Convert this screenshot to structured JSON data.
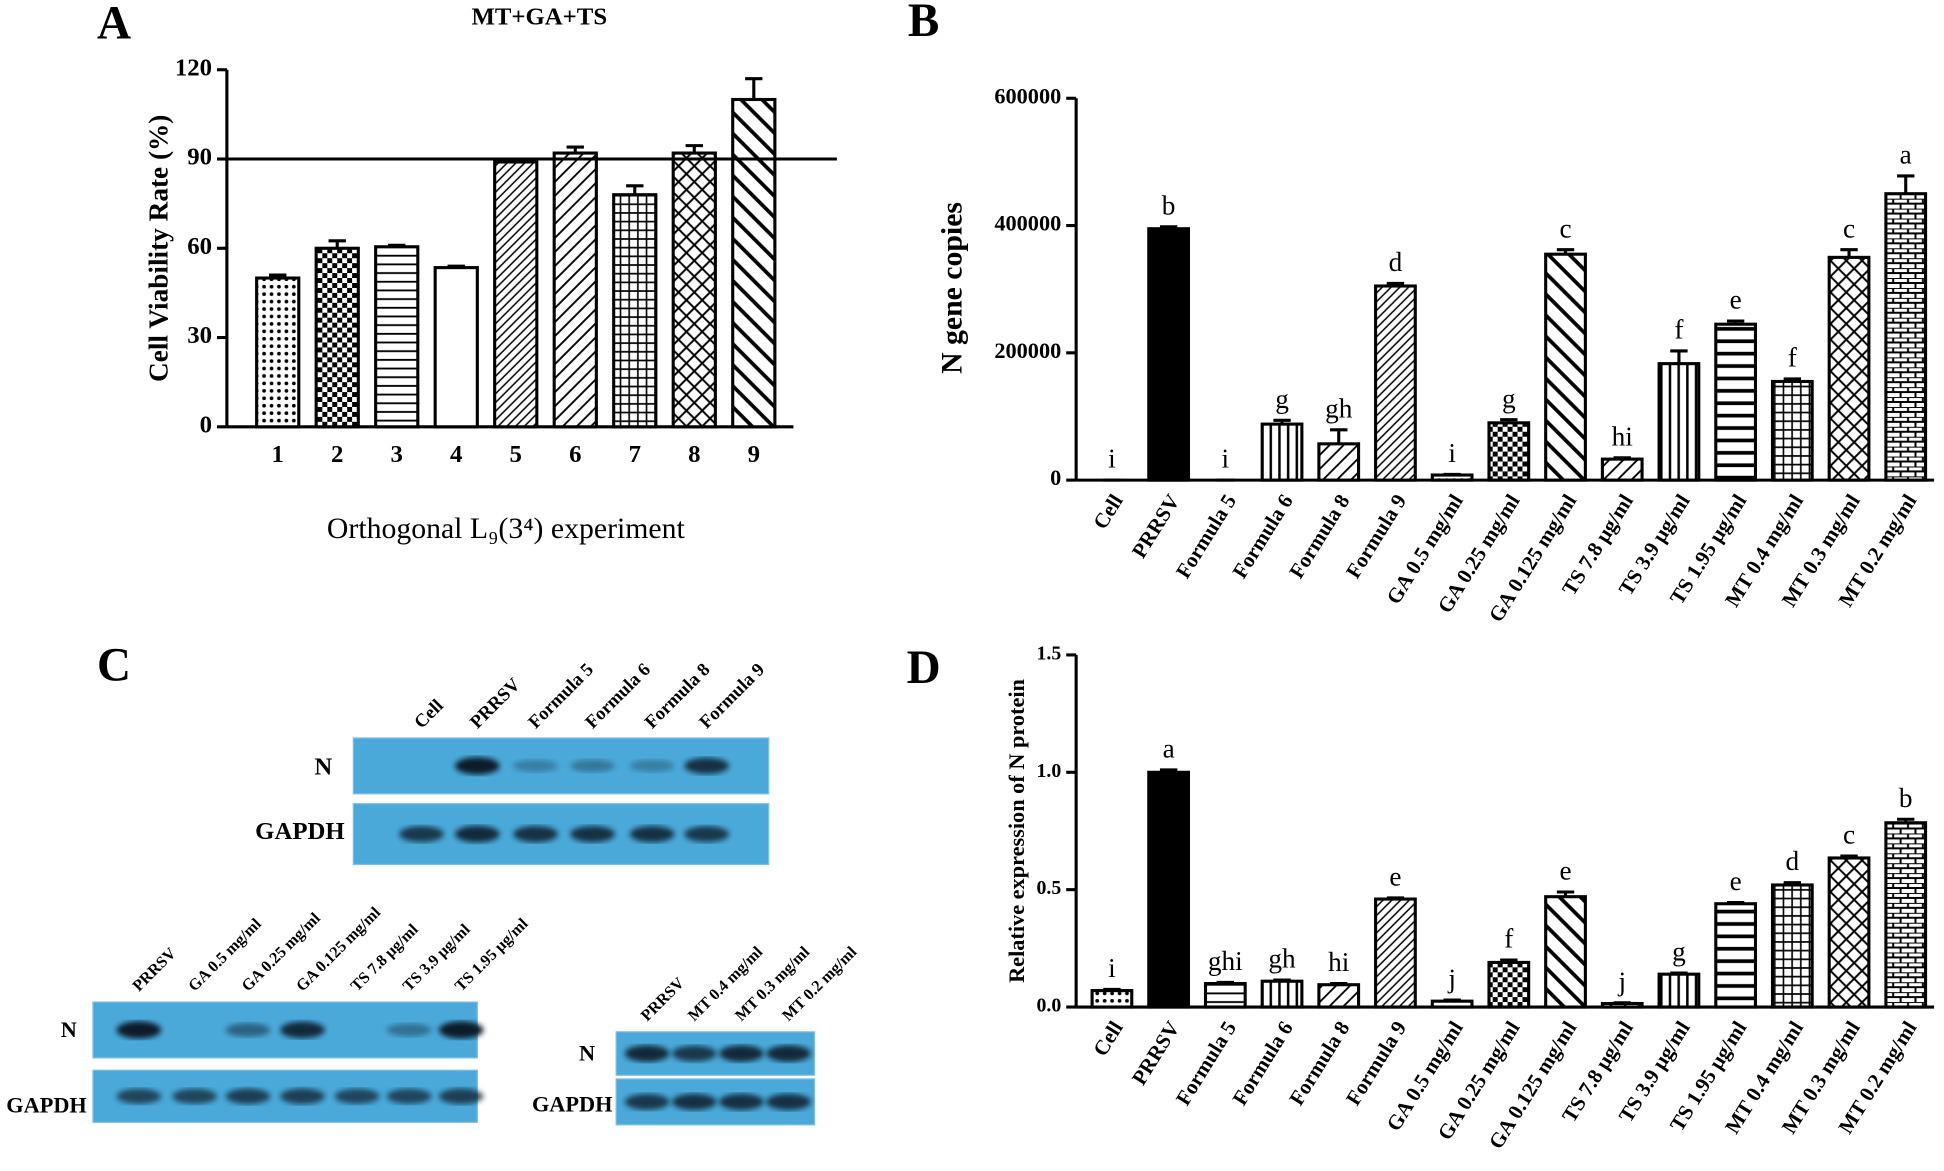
{
  "chart_data": [
    {
      "type": "bar",
      "panel": "A",
      "title": "MT+GA+TS",
      "y_label": "Cell Viability Rate (%)",
      "x_label": "Orthogonal L₉(3⁴) experiment",
      "categories": [
        "1",
        "2",
        "3",
        "4",
        "5",
        "6",
        "7",
        "8",
        "9"
      ],
      "values": [
        50,
        60,
        60.5,
        53.5,
        89,
        92,
        78,
        92,
        110
      ],
      "errors": [
        1,
        2.5,
        0.5,
        0.5,
        0,
        2,
        3,
        2.5,
        7
      ],
      "ylim": [
        0,
        120
      ],
      "yticks": [
        0,
        30,
        60,
        90,
        120
      ],
      "hline": 90
    },
    {
      "type": "bar",
      "panel": "B",
      "y_label": "N gene copies",
      "categories": [
        "Cell",
        "PRRSV",
        "Formula  5",
        "Formula  6",
        "Formula  8",
        "Formula  9",
        "GA 0.5 mg/ml",
        "GA 0.25 mg/ml",
        "GA 0.125 mg/ml",
        "TS 7.8 μg/ml",
        "TS 3.9 μg/ml",
        "TS 1.95 μg/ml",
        "MT 0.4 mg/ml",
        "MT 0.3 mg/ml",
        "MT 0.2 mg/ml"
      ],
      "values": [
        0,
        395000,
        0,
        88000,
        57000,
        305000,
        8000,
        90000,
        355000,
        33000,
        183000,
        245000,
        155000,
        350000,
        450000
      ],
      "errors": [
        0,
        3000,
        0,
        6000,
        22000,
        4000,
        1000,
        5000,
        7000,
        2000,
        20000,
        5000,
        4000,
        12000,
        28000
      ],
      "letters": [
        "i",
        "b",
        "i",
        "g",
        "gh",
        "d",
        "i",
        "g",
        "c",
        "hi",
        "f",
        "e",
        "f",
        "c",
        "a"
      ],
      "ylim": [
        0,
        600000
      ],
      "yticks": [
        0,
        200000,
        400000,
        600000
      ]
    },
    {
      "type": "bar",
      "panel": "D",
      "y_label": "Relative expression of N protein",
      "categories": [
        "Cell",
        "PRRSV",
        "Formula 5",
        "Formula 6",
        "Formula 8",
        "Formula 9",
        "GA 0.5 mg/ml",
        "GA 0.25 mg/ml",
        "GA 0.125 mg/ml",
        "TS 7.8 μg/ml",
        "TS 3.9 μg/ml",
        "TS 1.95 μg/ml",
        "MT 0.4 mg/ml",
        "MT 0.3 mg/ml",
        "MT 0.2 mg/ml"
      ],
      "values": [
        0.07,
        1.0,
        0.1,
        0.11,
        0.095,
        0.46,
        0.025,
        0.19,
        0.47,
        0.015,
        0.14,
        0.44,
        0.52,
        0.635,
        0.785
      ],
      "errors": [
        0.005,
        0.01,
        0.005,
        0.005,
        0.005,
        0.005,
        0.005,
        0.01,
        0.02,
        0.003,
        0.005,
        0.005,
        0.01,
        0.008,
        0.015
      ],
      "letters": [
        "i",
        "a",
        "ghi",
        "gh",
        "hi",
        "e",
        "j",
        "f",
        "e",
        "j",
        "g",
        "e",
        "d",
        "c",
        "b"
      ],
      "ylim": [
        0,
        1.5
      ],
      "yticks": [
        {
          "value": 0,
          "label": "0.0"
        },
        0.5,
        {
          "value": 1,
          "label": "1.0"
        },
        1.5
      ]
    }
  ],
  "panel_c": {
    "label": "C",
    "blots": [
      {
        "lanes": [
          "Cell",
          "PRRSV",
          "Formula 5",
          "Formula 6",
          "Formula 8",
          "Formula 9"
        ],
        "rows": [
          "N",
          "GAPDH"
        ]
      },
      {
        "lanes": [
          "PRRSV",
          "GA 0.5 mg/ml",
          "GA 0.25 mg/ml",
          "GA 0.125 mg/ml",
          "TS 7.8 μg/ml",
          "TS 3.9 μg/ml",
          "TS 1.95 μg/ml"
        ],
        "rows": [
          "N",
          "GAPDH"
        ]
      },
      {
        "lanes": [
          "PRRSV",
          "MT 0.4 mg/ml",
          "MT 0.3 mg/ml",
          "MT 0.2 mg/ml"
        ],
        "rows": [
          "N",
          "GAPDH"
        ]
      }
    ]
  }
}
